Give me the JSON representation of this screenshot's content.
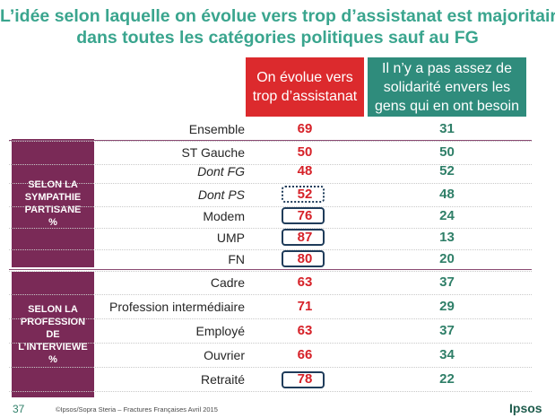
{
  "title": {
    "line1": "L’idée selon laquelle on évolue vers trop d’assistanat est majoritaire",
    "line2": "dans toutes les catégories politiques sauf au FG"
  },
  "headers": {
    "col_a": [
      "On évolue vers",
      "trop d’assistanat"
    ],
    "col_b": [
      "Il n’y a pas assez de",
      "solidarité envers les",
      "gens qui en ont besoin"
    ]
  },
  "side_labels": {
    "sympathie": [
      "SELON LA",
      "SYMPATHIE",
      "PARTISANE",
      "%"
    ],
    "profession": [
      "SELON LA",
      "PROFESSION",
      "DE",
      "L’INTERVIEWE",
      "%"
    ]
  },
  "rows": [
    {
      "label": "Ensemble",
      "a": "69",
      "b": "31"
    },
    {
      "label": "ST Gauche",
      "a": "50",
      "b": "50"
    },
    {
      "label": "Dont FG",
      "a": "48",
      "b": "52"
    },
    {
      "label": "Dont PS",
      "a": "52",
      "b": "48"
    },
    {
      "label": "Modem",
      "a": "76",
      "b": "24"
    },
    {
      "label": "UMP",
      "a": "87",
      "b": "13"
    },
    {
      "label": "FN",
      "a": "80",
      "b": "20"
    },
    {
      "label": "Cadre",
      "a": "63",
      "b": "37"
    },
    {
      "label": "Profession intermédiaire",
      "a": "71",
      "b": "29"
    },
    {
      "label": "Employé",
      "a": "63",
      "b": "37"
    },
    {
      "label": "Ouvrier",
      "a": "66",
      "b": "34"
    },
    {
      "label": "Retraité",
      "a": "78",
      "b": "22"
    }
  ],
  "footer": {
    "page_number": "37",
    "source": "©Ipsos/Sopra Steria –  Fractures Françaises  Avril 2015",
    "logo": "Ipsos"
  }
}
